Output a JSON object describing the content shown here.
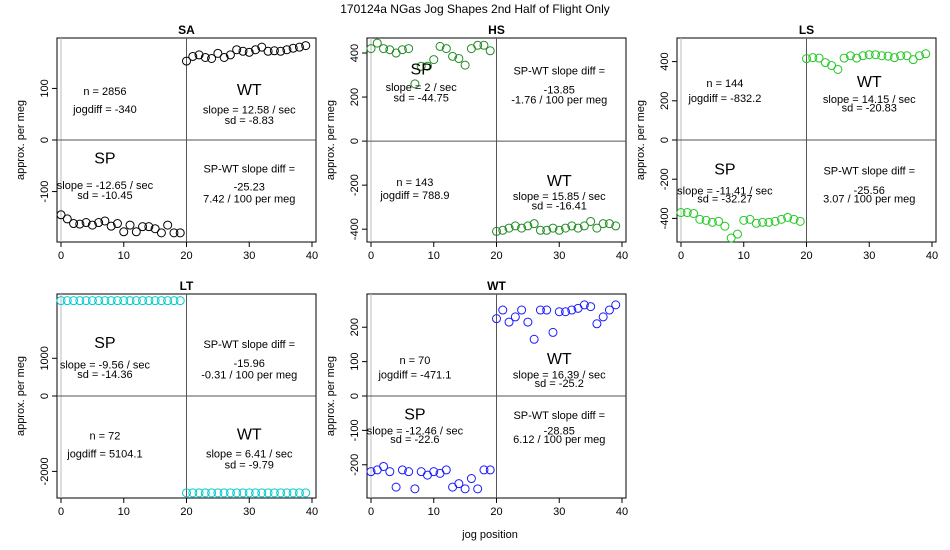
{
  "figure": {
    "title": "170124a   NGas Jog Shapes 2nd Half of Flight Only",
    "xlabel": "jog position",
    "ylabel": "approx. per meg"
  },
  "chart_data": [
    {
      "type": "scatter",
      "title": "SA",
      "color": "#000000",
      "xlim": [
        0,
        40
      ],
      "ylim": [
        -190,
        190
      ],
      "xticks": [
        "0",
        "10",
        "20",
        "30",
        "40"
      ],
      "yticks": [
        -100,
        0,
        100
      ],
      "divider_x": 20,
      "divider_y": 0,
      "x": [
        0,
        1,
        2,
        3,
        4,
        5,
        6,
        7,
        8,
        9,
        10,
        11,
        12,
        13,
        14,
        15,
        16,
        17,
        18,
        19,
        20,
        21,
        22,
        23,
        24,
        25,
        26,
        27,
        28,
        29,
        30,
        31,
        32,
        33,
        34,
        35,
        36,
        37,
        38,
        39
      ],
      "y": [
        -145,
        -153,
        -162,
        -163,
        -160,
        -165,
        -160,
        -157,
        -167,
        -162,
        -178,
        -165,
        -178,
        -168,
        -168,
        -172,
        -180,
        -165,
        -180,
        -180,
        153,
        162,
        165,
        160,
        158,
        168,
        160,
        165,
        175,
        172,
        170,
        175,
        180,
        172,
        173,
        172,
        175,
        178,
        180,
        183
      ],
      "annotations": [
        {
          "text": "n = 2856",
          "x": 7,
          "y": 95
        },
        {
          "text": "jogdiff = -340",
          "x": 7,
          "y": 60
        },
        {
          "text": "WT",
          "x": 30,
          "y": 95,
          "big": true
        },
        {
          "text": "slope = 12.58 / sec",
          "x": 30,
          "y": 59
        },
        {
          "text": "sd = -8.83",
          "x": 30,
          "y": 39
        },
        {
          "text": "SP",
          "x": 7,
          "y": -38,
          "big": true
        },
        {
          "text": "slope = -12.65 / sec",
          "x": 7,
          "y": -87
        },
        {
          "text": "sd = -10.45",
          "x": 7,
          "y": -107
        },
        {
          "text": "SP-WT slope diff =",
          "x": 30,
          "y": -55
        },
        {
          "text": "-25.23",
          "x": 30,
          "y": -90
        },
        {
          "text": "7.42 / 100 per meg",
          "x": 30,
          "y": -113
        }
      ]
    },
    {
      "type": "scatter",
      "title": "HS",
      "color": "#228b22",
      "xlim": [
        0,
        40
      ],
      "ylim": [
        -440,
        450
      ],
      "xticks": [
        "0",
        "10",
        "20",
        "30",
        "40"
      ],
      "yticks": [
        -400,
        -200,
        0,
        200,
        400
      ],
      "divider_x": 20,
      "divider_y": 0,
      "x": [
        0,
        1,
        2,
        3,
        4,
        5,
        6,
        7,
        8,
        9,
        10,
        11,
        12,
        13,
        14,
        15,
        16,
        17,
        18,
        19,
        20,
        21,
        22,
        23,
        24,
        25,
        26,
        27,
        28,
        29,
        30,
        31,
        32,
        33,
        34,
        35,
        36,
        37,
        38,
        39
      ],
      "y": [
        420,
        445,
        420,
        415,
        400,
        415,
        420,
        260,
        340,
        340,
        370,
        430,
        420,
        385,
        375,
        345,
        420,
        435,
        435,
        410,
        -410,
        -405,
        -395,
        -385,
        -395,
        -385,
        -375,
        -405,
        -405,
        -395,
        -405,
        -395,
        -385,
        -395,
        -385,
        -365,
        -395,
        -375,
        -375,
        -385
      ],
      "annotations": [
        {
          "text": "SP",
          "x": 8,
          "y": 320,
          "big": true
        },
        {
          "text": "slope = 2 / sec",
          "x": 8,
          "y": 245
        },
        {
          "text": "sd = -44.75",
          "x": 8,
          "y": 198
        },
        {
          "text": "SP-WT slope diff =",
          "x": 30,
          "y": 320
        },
        {
          "text": "-13.85",
          "x": 30,
          "y": 235
        },
        {
          "text": "-1.76 / 100 per meg",
          "x": 30,
          "y": 190
        },
        {
          "text": "n = 143",
          "x": 7,
          "y": -185
        },
        {
          "text": "jogdiff = 788.9",
          "x": 7,
          "y": -245
        },
        {
          "text": "WT",
          "x": 30,
          "y": -185,
          "big": true
        },
        {
          "text": "slope = 15.85 / sec",
          "x": 30,
          "y": -250
        },
        {
          "text": "sd = -16.41",
          "x": 30,
          "y": -293
        }
      ]
    },
    {
      "type": "scatter",
      "title": "LS",
      "color": "#22c822",
      "xlim": [
        0,
        40
      ],
      "ylim": [
        -500,
        500
      ],
      "xticks": [
        "0",
        "10",
        "20",
        "30",
        "40"
      ],
      "yticks": [
        -400,
        -200,
        0,
        200,
        400
      ],
      "divider_x": 20,
      "divider_y": 0,
      "x": [
        0,
        1,
        2,
        3,
        4,
        5,
        6,
        7,
        8,
        9,
        10,
        11,
        12,
        13,
        14,
        15,
        16,
        17,
        18,
        19,
        20,
        21,
        22,
        23,
        24,
        25,
        26,
        27,
        28,
        29,
        30,
        31,
        32,
        33,
        34,
        35,
        36,
        37,
        38,
        39
      ],
      "y": [
        -370,
        -370,
        -375,
        -405,
        -410,
        -420,
        -415,
        -440,
        -500,
        -480,
        -410,
        -405,
        -425,
        -420,
        -420,
        -415,
        -405,
        -395,
        -405,
        -415,
        415,
        420,
        418,
        395,
        380,
        360,
        418,
        430,
        418,
        430,
        435,
        435,
        430,
        428,
        420,
        430,
        430,
        410,
        430,
        440
      ],
      "annotations": [
        {
          "text": "n = 144",
          "x": 7,
          "y": 290
        },
        {
          "text": "jogdiff = -832.2",
          "x": 7,
          "y": 215
        },
        {
          "text": "WT",
          "x": 30,
          "y": 290,
          "big": true
        },
        {
          "text": "slope = 14.15 / sec",
          "x": 30,
          "y": 210
        },
        {
          "text": "sd = -20.83",
          "x": 30,
          "y": 165
        },
        {
          "text": "SP",
          "x": 7,
          "y": -155,
          "big": true
        },
        {
          "text": "slope = -11.41 / sec",
          "x": 7,
          "y": -257
        },
        {
          "text": "sd = -32.27",
          "x": 7,
          "y": -298
        },
        {
          "text": "SP-WT slope diff =",
          "x": 30,
          "y": -155
        },
        {
          "text": "-25.56",
          "x": 30,
          "y": -255
        },
        {
          "text": "3.07 / 100 per meg",
          "x": 30,
          "y": -298
        }
      ]
    },
    {
      "type": "scatter",
      "title": "LT",
      "color": "#00cccc",
      "xlim": [
        0,
        40
      ],
      "ylim": [
        -2600,
        2600
      ],
      "xticks": [
        "0",
        "10",
        "20",
        "30",
        "40"
      ],
      "yticks": [
        -2000,
        0,
        1000
      ],
      "divider_x": 20,
      "divider_y": 0,
      "x": [
        0,
        1,
        2,
        3,
        4,
        5,
        6,
        7,
        8,
        9,
        10,
        11,
        12,
        13,
        14,
        15,
        16,
        17,
        18,
        19,
        20,
        21,
        22,
        23,
        24,
        25,
        26,
        27,
        28,
        29,
        30,
        31,
        32,
        33,
        34,
        35,
        36,
        37,
        38,
        39
      ],
      "y": [
        2530,
        2530,
        2530,
        2530,
        2530,
        2530,
        2530,
        2530,
        2530,
        2530,
        2530,
        2530,
        2530,
        2530,
        2530,
        2530,
        2530,
        2530,
        2530,
        2530,
        -2570,
        -2570,
        -2570,
        -2570,
        -2570,
        -2570,
        -2570,
        -2570,
        -2570,
        -2570,
        -2570,
        -2570,
        -2570,
        -2570,
        -2570,
        -2570,
        -2570,
        -2570,
        -2570,
        -2570
      ],
      "annotations": [
        {
          "text": "SP",
          "x": 7,
          "y": 1380,
          "big": true
        },
        {
          "text": "slope = -9.56 / sec",
          "x": 7,
          "y": 830
        },
        {
          "text": "sd = -14.36",
          "x": 7,
          "y": 580
        },
        {
          "text": "SP-WT slope diff =",
          "x": 30,
          "y": 1380
        },
        {
          "text": "-15.96",
          "x": 30,
          "y": 880
        },
        {
          "text": "-0.31 / 100 per meg",
          "x": 30,
          "y": 570
        },
        {
          "text": "n = 72",
          "x": 7,
          "y": -1050
        },
        {
          "text": "jogdiff = 5104.1",
          "x": 7,
          "y": -1530
        },
        {
          "text": "WT",
          "x": 30,
          "y": -1050,
          "big": true
        },
        {
          "text": "slope = 6.41 / sec",
          "x": 30,
          "y": -1530
        },
        {
          "text": "sd = -9.79",
          "x": 30,
          "y": -1820
        }
      ]
    },
    {
      "type": "scatter",
      "title": "WT",
      "color": "#1a1aff",
      "xlim": [
        0,
        40
      ],
      "ylim": [
        -285,
        285
      ],
      "xticks": [
        "0",
        "10",
        "20",
        "30",
        "40"
      ],
      "yticks": [
        -200,
        -100,
        0,
        100,
        200
      ],
      "divider_x": 20,
      "divider_y": 0,
      "x": [
        0,
        1,
        2,
        3,
        4,
        5,
        6,
        7,
        8,
        9,
        10,
        11,
        12,
        13,
        14,
        15,
        16,
        17,
        18,
        19,
        20,
        21,
        22,
        23,
        24,
        25,
        26,
        27,
        28,
        29,
        30,
        31,
        32,
        33,
        34,
        35,
        36,
        37,
        38,
        39
      ],
      "y": [
        -220,
        -215,
        -205,
        -220,
        -265,
        -215,
        -220,
        -270,
        -220,
        -230,
        -220,
        -225,
        -215,
        -265,
        -255,
        -270,
        -240,
        -270,
        -215,
        -215,
        225,
        250,
        215,
        230,
        250,
        215,
        165,
        250,
        250,
        185,
        245,
        245,
        250,
        255,
        265,
        260,
        210,
        230,
        250,
        265
      ],
      "annotations": [
        {
          "text": "n = 70",
          "x": 7,
          "y": 105
        },
        {
          "text": "jogdiff = -471.1",
          "x": 7,
          "y": 62
        },
        {
          "text": "WT",
          "x": 30,
          "y": 105,
          "big": true
        },
        {
          "text": "slope = 16.39 / sec",
          "x": 30,
          "y": 62
        },
        {
          "text": "sd = -25.2",
          "x": 30,
          "y": 38
        },
        {
          "text": "SP",
          "x": 7,
          "y": -56,
          "big": true
        },
        {
          "text": "slope = -12.46 / sec",
          "x": 7,
          "y": -100
        },
        {
          "text": "sd = -22.6",
          "x": 7,
          "y": -125
        },
        {
          "text": "SP-WT slope diff =",
          "x": 30,
          "y": -55
        },
        {
          "text": "-28.85",
          "x": 30,
          "y": -100
        },
        {
          "text": "6.12 / 100 per meg",
          "x": 30,
          "y": -125
        }
      ]
    }
  ]
}
